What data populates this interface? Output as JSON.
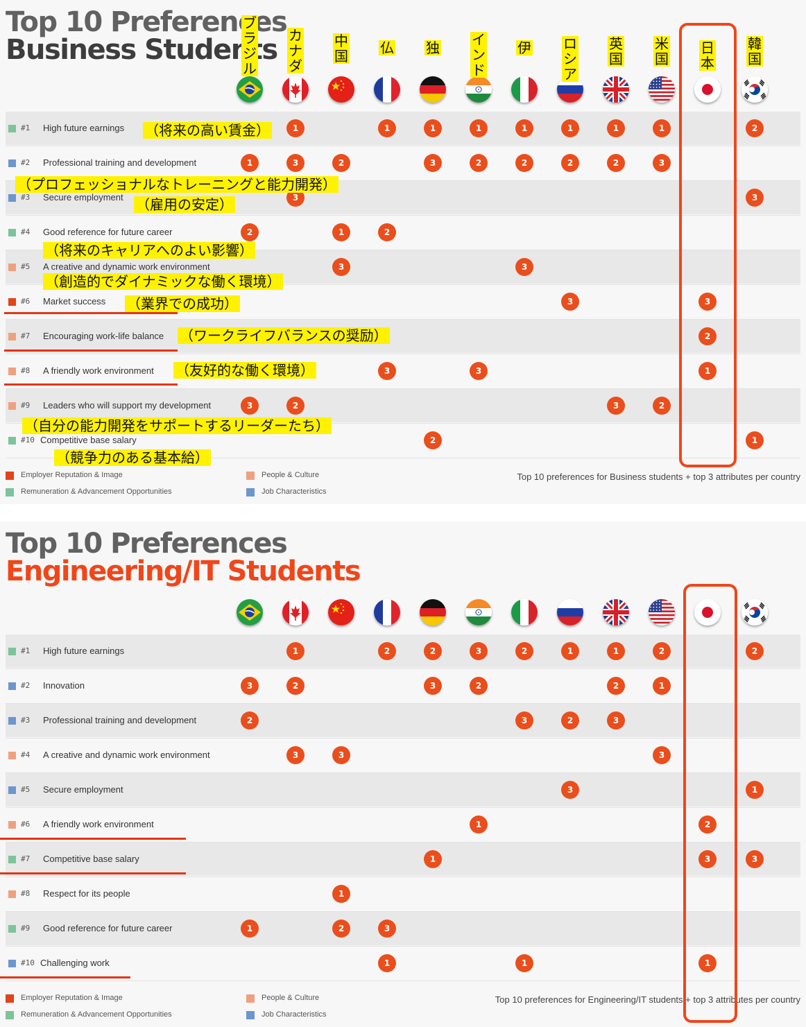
{
  "chart_data": [
    {
      "type": "table",
      "title": "Top 10 Preferences",
      "subtitle": "Business Students",
      "countries": [
        "ブラジル",
        "カナダ",
        "中国",
        "仏",
        "独",
        "インド",
        "伊",
        "ロシア",
        "英国",
        "米国",
        "日本",
        "韓国"
      ],
      "country_flags": [
        "brazil-flag",
        "canada-flag",
        "china-flag",
        "france-flag",
        "germany-flag",
        "india-flag",
        "italy-flag",
        "russia-flag",
        "uk-flag",
        "usa-flag",
        "japan-flag",
        "korea-flag"
      ],
      "rows": [
        {
          "rank": "#1",
          "label": "High future earnings",
          "category": "remuneration",
          "jp_note": "（将来の高い賃金）",
          "ranks": [
            null,
            1,
            null,
            1,
            1,
            1,
            1,
            1,
            1,
            1,
            null,
            2
          ]
        },
        {
          "rank": "#2",
          "label": "Professional training and development",
          "category": "job",
          "jp_note": "（プロフェッショナルなトレーニングと能力開発）",
          "ranks": [
            1,
            3,
            2,
            null,
            3,
            2,
            2,
            2,
            2,
            3,
            null,
            null
          ]
        },
        {
          "rank": "#3",
          "label": "Secure employment",
          "category": "job",
          "jp_note": "（雇用の安定）",
          "ranks": [
            null,
            3,
            null,
            null,
            null,
            null,
            null,
            null,
            null,
            null,
            null,
            3
          ]
        },
        {
          "rank": "#4",
          "label": "Good reference for future career",
          "category": "remuneration",
          "jp_note": "（将来のキャリアへのよい影響）",
          "ranks": [
            2,
            null,
            1,
            2,
            null,
            null,
            null,
            null,
            null,
            null,
            null,
            null
          ]
        },
        {
          "rank": "#5",
          "label": "A creative and dynamic work environment",
          "category": "people",
          "jp_note": "（創造的でダイナミックな働く環境）",
          "ranks": [
            null,
            null,
            3,
            null,
            null,
            null,
            3,
            null,
            null,
            null,
            null,
            null
          ]
        },
        {
          "rank": "#6",
          "label": "Market success",
          "category": "employer",
          "jp_note": "（業界での成功）",
          "ranks": [
            null,
            null,
            null,
            null,
            null,
            null,
            null,
            3,
            null,
            null,
            3,
            null
          ]
        },
        {
          "rank": "#7",
          "label": "Encouraging work-life balance",
          "category": "people",
          "jp_note": "（ワークライフバランスの奨励）",
          "ranks": [
            null,
            null,
            null,
            null,
            null,
            null,
            null,
            null,
            null,
            null,
            2,
            null
          ]
        },
        {
          "rank": "#8",
          "label": "A friendly work environment",
          "category": "people",
          "jp_note": "（友好的な働く環境）",
          "ranks": [
            null,
            null,
            null,
            3,
            null,
            3,
            null,
            null,
            null,
            null,
            1,
            null
          ]
        },
        {
          "rank": "#9",
          "label": "Leaders who will support my development",
          "category": "people",
          "jp_note": "（自分の能力開発をサポートするリーダーたち）",
          "ranks": [
            3,
            2,
            null,
            null,
            null,
            null,
            null,
            null,
            3,
            2,
            null,
            null
          ]
        },
        {
          "rank": "#10",
          "label": "Competitive base salary",
          "category": "remuneration",
          "jp_note": "（競争力のある基本給）",
          "ranks": [
            null,
            null,
            null,
            null,
            2,
            null,
            null,
            null,
            null,
            null,
            null,
            1
          ]
        }
      ],
      "legend": [
        {
          "key": "employer",
          "label": "Employer Reputation & Image"
        },
        {
          "key": "remuneration",
          "label": "Remuneration & Advancement Opportunities"
        },
        {
          "key": "people",
          "label": "People & Culture"
        },
        {
          "key": "job",
          "label": "Job Characteristics"
        }
      ],
      "footnote": "Top 10 preferences for Business students + top 3 attributes per country"
    },
    {
      "type": "table",
      "title": "Top 10 Preferences",
      "subtitle": "Engineering/IT Students",
      "country_flags": [
        "brazil-flag",
        "canada-flag",
        "china-flag",
        "france-flag",
        "germany-flag",
        "india-flag",
        "italy-flag",
        "russia-flag",
        "uk-flag",
        "usa-flag",
        "japan-flag",
        "korea-flag"
      ],
      "rows": [
        {
          "rank": "#1",
          "label": "High future earnings",
          "category": "remuneration",
          "ranks": [
            null,
            1,
            null,
            2,
            2,
            3,
            2,
            1,
            1,
            2,
            null,
            2
          ]
        },
        {
          "rank": "#2",
          "label": "Innovation",
          "category": "job",
          "ranks": [
            3,
            2,
            null,
            null,
            3,
            2,
            null,
            null,
            2,
            1,
            null,
            null
          ]
        },
        {
          "rank": "#3",
          "label": "Professional training and development",
          "category": "job",
          "ranks": [
            2,
            null,
            null,
            null,
            null,
            null,
            3,
            2,
            3,
            null,
            null,
            null
          ]
        },
        {
          "rank": "#4",
          "label": "A creative and dynamic work environment",
          "category": "people",
          "ranks": [
            null,
            3,
            3,
            null,
            null,
            null,
            null,
            null,
            null,
            3,
            null,
            null
          ]
        },
        {
          "rank": "#5",
          "label": "Secure employment",
          "category": "job",
          "ranks": [
            null,
            null,
            null,
            null,
            null,
            null,
            null,
            3,
            null,
            null,
            null,
            1
          ]
        },
        {
          "rank": "#6",
          "label": "A friendly work environment",
          "category": "people",
          "ranks": [
            null,
            null,
            null,
            null,
            null,
            1,
            null,
            null,
            null,
            null,
            2,
            null
          ]
        },
        {
          "rank": "#7",
          "label": "Competitive base salary",
          "category": "remuneration",
          "ranks": [
            null,
            null,
            null,
            null,
            1,
            null,
            null,
            null,
            null,
            null,
            3,
            3
          ]
        },
        {
          "rank": "#8",
          "label": "Respect for its people",
          "category": "people",
          "ranks": [
            null,
            null,
            1,
            null,
            null,
            null,
            null,
            null,
            null,
            null,
            null,
            null
          ]
        },
        {
          "rank": "#9",
          "label": "Good reference for future career",
          "category": "remuneration",
          "ranks": [
            1,
            null,
            2,
            3,
            null,
            null,
            null,
            null,
            null,
            null,
            null,
            null
          ]
        },
        {
          "rank": "#10",
          "label": "Challenging work",
          "category": "job",
          "ranks": [
            null,
            null,
            null,
            1,
            null,
            null,
            1,
            null,
            null,
            null,
            1,
            null
          ]
        }
      ],
      "legend": [
        {
          "key": "employer",
          "label": "Employer Reputation & Image"
        },
        {
          "key": "remuneration",
          "label": "Remuneration & Advancement Opportunities"
        },
        {
          "key": "people",
          "label": "People & Culture"
        },
        {
          "key": "job",
          "label": "Job Characteristics"
        }
      ],
      "footnote": "Top 10 preferences for Engineering/IT students + top 3 attributes per country"
    }
  ],
  "colors": {
    "employer": "#e2431b",
    "remuneration": "#7cc49a",
    "people": "#efa17f",
    "job": "#6d96cf",
    "badge": "#ea4e1c",
    "subtitle_business": "#3d3d3d",
    "subtitle_engineering": "#f0461a",
    "highlight": "#f0461a",
    "marker": "#fff200"
  }
}
